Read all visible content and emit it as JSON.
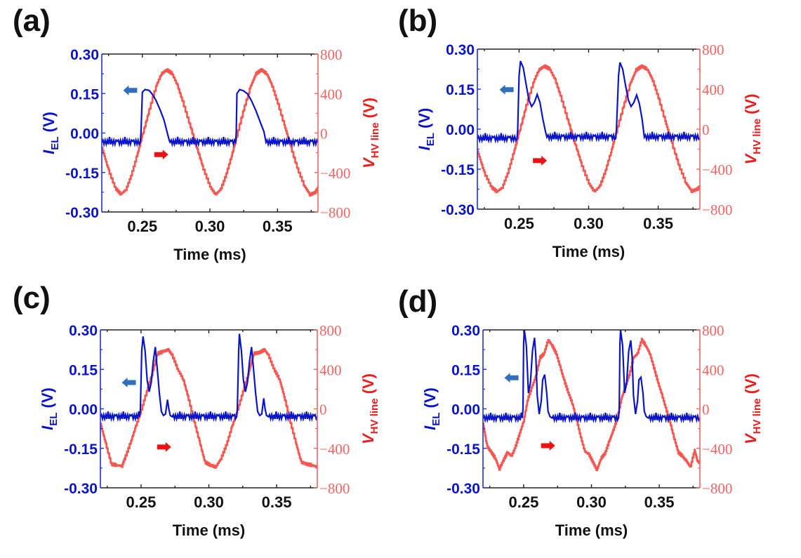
{
  "figure": {
    "panel_labels": [
      "(a)",
      "(b)",
      "(c)",
      "(d)"
    ]
  },
  "colors": {
    "current_trace": "#0a14c8",
    "voltage_trace": "#f5564f",
    "left_axis": "#1f2fe0",
    "right_axis": "#f06464",
    "left_arrow": "#2f6fbf",
    "right_arrow": "#ee1111",
    "frame": "#222222"
  },
  "chart_data": [
    {
      "panel": "(a)",
      "type": "line",
      "title": "",
      "xlabel": "Time (ms)",
      "ylabel_left": {
        "symbol": "I",
        "subscript": "EL",
        "unit": "(V)"
      },
      "ylabel_right": {
        "symbol": "V",
        "subscript": "HV line",
        "unit": "(V)"
      },
      "xlim": [
        0.22,
        0.38
      ],
      "ylim_left": [
        -0.3,
        0.3
      ],
      "ylim_right": [
        -800,
        800
      ],
      "x_ticks": [
        "0.25",
        "0.30",
        "0.35"
      ],
      "x_tick_values": [
        0.25,
        0.3,
        0.35
      ],
      "left_ticks": [
        "0.30",
        "0.15",
        "0.00",
        "-0.15",
        "-0.30"
      ],
      "left_tick_values": [
        0.3,
        0.15,
        0.0,
        -0.15,
        -0.3
      ],
      "right_ticks": [
        "800",
        "400",
        "0",
        "−400",
        "−800"
      ],
      "right_tick_values": [
        800,
        400,
        0,
        -400,
        -800
      ],
      "grid": false,
      "annotations": [
        {
          "type": "arrow",
          "direction": "left",
          "meaning": "I_EL uses left axis",
          "x": 0.241,
          "y_left": 0.162
        },
        {
          "type": "arrow",
          "direction": "right",
          "meaning": "V_HV line uses right axis",
          "x": 0.264,
          "y_left": -0.082
        }
      ],
      "series": [
        {
          "name": "I_EL",
          "axis": "left",
          "x": [
            0.22,
            0.2485,
            0.249,
            0.25,
            0.252,
            0.255,
            0.257,
            0.26,
            0.263,
            0.266,
            0.268,
            0.27,
            0.2705,
            0.319,
            0.3195,
            0.32,
            0.322,
            0.325,
            0.328,
            0.331,
            0.334,
            0.337,
            0.34,
            0.3415,
            0.38
          ],
          "values": [
            -0.035,
            -0.035,
            0.0,
            0.155,
            0.165,
            0.162,
            0.15,
            0.125,
            0.09,
            0.05,
            0.01,
            -0.03,
            -0.035,
            -0.035,
            0.0,
            0.15,
            0.165,
            0.16,
            0.148,
            0.12,
            0.085,
            0.045,
            0.005,
            -0.035,
            -0.035
          ]
        },
        {
          "name": "V_HV line",
          "axis": "right",
          "x": [
            0.22,
            0.225,
            0.23,
            0.234,
            0.238,
            0.242,
            0.246,
            0.25,
            0.255,
            0.26,
            0.264,
            0.268,
            0.272,
            0.276,
            0.28,
            0.285,
            0.29,
            0.295,
            0.3,
            0.304,
            0.308,
            0.312,
            0.316,
            0.32,
            0.325,
            0.33,
            0.334,
            0.338,
            0.342,
            0.346,
            0.35,
            0.355,
            0.36,
            0.365,
            0.37,
            0.374,
            0.378,
            0.38
          ],
          "values": [
            -150,
            -380,
            -560,
            -620,
            -570,
            -420,
            -230,
            -20,
            230,
            470,
            600,
            640,
            600,
            480,
            310,
            90,
            -140,
            -360,
            -540,
            -625,
            -570,
            -420,
            -230,
            -20,
            240,
            470,
            600,
            640,
            600,
            480,
            310,
            80,
            -150,
            -370,
            -540,
            -625,
            -600,
            -560
          ]
        }
      ]
    },
    {
      "panel": "(b)",
      "type": "line",
      "title": "",
      "xlabel": "Time (ms)",
      "ylabel_left": {
        "symbol": "I",
        "subscript": "EL",
        "unit": "(V)"
      },
      "ylabel_right": {
        "symbol": "V",
        "subscript": "HV line",
        "unit": "(V)"
      },
      "xlim": [
        0.22,
        0.38
      ],
      "ylim_left": [
        -0.3,
        0.3
      ],
      "ylim_right": [
        -800,
        800
      ],
      "x_ticks": [
        "0.25",
        "0.30",
        "0.35"
      ],
      "x_tick_values": [
        0.25,
        0.3,
        0.35
      ],
      "left_ticks": [
        "0.30",
        "0.15",
        "0.00",
        "-0.15",
        "-0.30"
      ],
      "left_tick_values": [
        0.3,
        0.15,
        0.0,
        -0.15,
        -0.3
      ],
      "right_ticks": [
        "800",
        "400",
        "0",
        "−400",
        "−800"
      ],
      "right_tick_values": [
        800,
        400,
        0,
        -400,
        -800
      ],
      "grid": false,
      "annotations": [
        {
          "type": "arrow",
          "direction": "left",
          "meaning": "I_EL uses left axis",
          "x": 0.241,
          "y_left": 0.148
        },
        {
          "type": "arrow",
          "direction": "right",
          "meaning": "V_HV line uses right axis",
          "x": 0.265,
          "y_left": -0.118
        }
      ],
      "series": [
        {
          "name": "I_EL",
          "axis": "left",
          "x": [
            0.22,
            0.2485,
            0.249,
            0.25,
            0.251,
            0.253,
            0.255,
            0.257,
            0.259,
            0.261,
            0.263,
            0.265,
            0.267,
            0.269,
            0.27,
            0.38
          ],
          "values": [
            -0.035,
            -0.035,
            0.0,
            0.2,
            0.255,
            0.23,
            0.17,
            0.11,
            0.085,
            0.1,
            0.13,
            0.1,
            0.04,
            -0.01,
            -0.03,
            -0.035
          ],
          "x2": [
            0.3195,
            0.32,
            0.3215,
            0.3225,
            0.3245,
            0.3265,
            0.3285,
            0.3305,
            0.3325,
            0.3345,
            0.3365,
            0.3385,
            0.34
          ],
          "values2": [
            -0.035,
            0.0,
            0.2,
            0.25,
            0.225,
            0.165,
            0.11,
            0.085,
            0.1,
            0.128,
            0.095,
            0.035,
            -0.03
          ]
        },
        {
          "name": "V_HV line",
          "axis": "right",
          "x": [
            0.22,
            0.225,
            0.23,
            0.234,
            0.238,
            0.242,
            0.246,
            0.25,
            0.255,
            0.26,
            0.264,
            0.268,
            0.272,
            0.276,
            0.28,
            0.285,
            0.29,
            0.295,
            0.3,
            0.304,
            0.308,
            0.312,
            0.316,
            0.32,
            0.325,
            0.33,
            0.334,
            0.338,
            0.342,
            0.346,
            0.35,
            0.355,
            0.36,
            0.365,
            0.37,
            0.374,
            0.378,
            0.38
          ],
          "values": [
            -220,
            -440,
            -580,
            -625,
            -580,
            -430,
            -240,
            -30,
            230,
            460,
            590,
            630,
            600,
            490,
            320,
            90,
            -140,
            -360,
            -540,
            -625,
            -570,
            -420,
            -230,
            -20,
            230,
            460,
            590,
            630,
            600,
            490,
            320,
            80,
            -150,
            -370,
            -540,
            -620,
            -600,
            -580
          ]
        }
      ]
    },
    {
      "panel": "(c)",
      "type": "line",
      "title": "",
      "xlabel": "Time (ms)",
      "ylabel_left": {
        "symbol": "I",
        "subscript": "EL",
        "unit": "(V)"
      },
      "ylabel_right": {
        "symbol": "V",
        "subscript": "HV line",
        "unit": "(V)"
      },
      "xlim": [
        0.22,
        0.38
      ],
      "ylim_left": [
        -0.3,
        0.3
      ],
      "ylim_right": [
        -800,
        800
      ],
      "x_ticks": [
        "0.25",
        "0.30",
        "0.35"
      ],
      "x_tick_values": [
        0.25,
        0.3,
        0.35
      ],
      "left_ticks": [
        "0.30",
        "0.15",
        "0.00",
        "-0.15",
        "-0.30"
      ],
      "left_tick_values": [
        0.3,
        0.15,
        0.0,
        -0.15,
        -0.3
      ],
      "right_ticks": [
        "800",
        "400",
        "0",
        "−400",
        "−800"
      ],
      "right_tick_values": [
        800,
        400,
        0,
        -400,
        -800
      ],
      "grid": false,
      "annotations": [
        {
          "type": "arrow",
          "direction": "left",
          "meaning": "I_EL uses left axis",
          "x": 0.241,
          "y_left": 0.1
        },
        {
          "type": "arrow",
          "direction": "right",
          "meaning": "V_HV line uses right axis",
          "x": 0.267,
          "y_left": -0.145
        }
      ],
      "series": [
        {
          "name": "I_EL",
          "axis": "left",
          "x": [
            0.22,
            0.249,
            0.2495,
            0.2505,
            0.2515,
            0.253,
            0.2545,
            0.256,
            0.2575,
            0.259,
            0.2605,
            0.262,
            0.2635,
            0.265,
            0.2665,
            0.268,
            0.2695,
            0.2705,
            0.2715,
            0.273,
            0.38
          ],
          "values": [
            -0.03,
            -0.03,
            0.0,
            0.22,
            0.275,
            0.22,
            0.11,
            0.065,
            0.1,
            0.18,
            0.235,
            0.15,
            0.06,
            -0.01,
            -0.025,
            -0.02,
            0.035,
            0.0,
            -0.025,
            -0.03,
            -0.03
          ],
          "x2": [
            0.3205,
            0.321,
            0.322,
            0.3225,
            0.324,
            0.3255,
            0.327,
            0.3285,
            0.33,
            0.3315,
            0.333,
            0.3345,
            0.336,
            0.3375,
            0.339,
            0.3405,
            0.3415,
            0.3425,
            0.344
          ],
          "values2": [
            -0.03,
            0.0,
            0.22,
            0.285,
            0.22,
            0.11,
            0.065,
            0.1,
            0.18,
            0.235,
            0.15,
            0.06,
            -0.01,
            -0.025,
            -0.02,
            0.04,
            0.0,
            -0.025,
            -0.03
          ]
        },
        {
          "name": "V_HV line",
          "axis": "right",
          "x": [
            0.22,
            0.224,
            0.228,
            0.232,
            0.236,
            0.238,
            0.242,
            0.246,
            0.25,
            0.254,
            0.258,
            0.262,
            0.266,
            0.27,
            0.273,
            0.277,
            0.281,
            0.285,
            0.289,
            0.293,
            0.297,
            0.301,
            0.305,
            0.309,
            0.313,
            0.317,
            0.321,
            0.325,
            0.329,
            0.333,
            0.337,
            0.341,
            0.344,
            0.348,
            0.352,
            0.356,
            0.36,
            0.364,
            0.368,
            0.372,
            0.376,
            0.38
          ],
          "values": [
            -150,
            -360,
            -560,
            -570,
            -580,
            -500,
            -350,
            -180,
            -20,
            170,
            350,
            560,
            580,
            600,
            540,
            400,
            300,
            100,
            -120,
            -330,
            -540,
            -570,
            -590,
            -500,
            -360,
            -180,
            -20,
            170,
            350,
            560,
            570,
            600,
            540,
            400,
            300,
            100,
            -130,
            -340,
            -540,
            -560,
            -570,
            -590
          ]
        }
      ]
    },
    {
      "panel": "(d)",
      "type": "line",
      "title": "",
      "xlabel": "Time (ms)",
      "ylabel_left": {
        "symbol": "I",
        "subscript": "EL",
        "unit": "(V)"
      },
      "ylabel_right": {
        "symbol": "V",
        "subscript": "HV line",
        "unit": "(V)"
      },
      "xlim": [
        0.22,
        0.38
      ],
      "ylim_left": [
        -0.3,
        0.3
      ],
      "ylim_right": [
        -800,
        800
      ],
      "x_ticks": [
        "0.25",
        "0.30",
        "0.35"
      ],
      "x_tick_values": [
        0.25,
        0.3,
        0.35
      ],
      "left_ticks": [
        "0.30",
        "0.15",
        "0.00",
        "-0.15",
        "-0.30"
      ],
      "left_tick_values": [
        0.3,
        0.15,
        0.0,
        -0.15,
        -0.3
      ],
      "right_ticks": [
        "800",
        "400",
        "0",
        "−400",
        "−800"
      ],
      "right_tick_values": [
        800,
        400,
        0,
        -400,
        -800
      ],
      "grid": false,
      "annotations": [
        {
          "type": "arrow",
          "direction": "left",
          "meaning": "I_EL uses left axis",
          "x": 0.241,
          "y_left": 0.118
        },
        {
          "type": "arrow",
          "direction": "right",
          "meaning": "V_HV line uses right axis",
          "x": 0.268,
          "y_left": -0.14
        }
      ],
      "series": [
        {
          "name": "I_EL",
          "axis": "left",
          "x": [
            0.22,
            0.249,
            0.2495,
            0.25,
            0.2505,
            0.252,
            0.2535,
            0.255,
            0.2565,
            0.258,
            0.259,
            0.26,
            0.2615,
            0.263,
            0.264,
            0.2655,
            0.267,
            0.268,
            0.2695,
            0.271,
            0.38
          ],
          "values": [
            -0.035,
            -0.035,
            0.0,
            0.25,
            0.3,
            0.24,
            0.06,
            0.1,
            0.22,
            0.27,
            0.2,
            0.05,
            -0.02,
            0.03,
            0.11,
            0.13,
            0.06,
            -0.01,
            -0.03,
            -0.035,
            -0.035
          ],
          "x2": [
            0.32,
            0.3205,
            0.321,
            0.3215,
            0.323,
            0.3245,
            0.326,
            0.3275,
            0.329,
            0.33,
            0.331,
            0.3325,
            0.334,
            0.335,
            0.3365,
            0.338,
            0.339,
            0.3405,
            0.342
          ],
          "values2": [
            -0.035,
            0.0,
            0.25,
            0.3,
            0.24,
            0.06,
            0.1,
            0.22,
            0.26,
            0.2,
            0.05,
            -0.02,
            0.03,
            0.11,
            0.12,
            0.06,
            -0.01,
            -0.03,
            -0.035
          ]
        },
        {
          "name": "V_HV line",
          "axis": "right",
          "x": [
            0.22,
            0.223,
            0.226,
            0.229,
            0.232,
            0.235,
            0.238,
            0.241,
            0.244,
            0.247,
            0.25,
            0.253,
            0.256,
            0.259,
            0.262,
            0.265,
            0.268,
            0.271,
            0.274,
            0.277,
            0.28,
            0.283,
            0.286,
            0.289,
            0.292,
            0.295,
            0.298,
            0.301,
            0.304,
            0.307,
            0.31,
            0.313,
            0.316,
            0.319,
            0.322,
            0.325,
            0.328,
            0.331,
            0.334,
            0.337,
            0.34,
            0.343,
            0.346,
            0.349,
            0.352,
            0.355,
            0.358,
            0.361,
            0.364,
            0.367,
            0.37,
            0.373,
            0.376,
            0.378,
            0.38
          ],
          "values": [
            -150,
            -380,
            -440,
            -500,
            -610,
            -520,
            -440,
            -480,
            -380,
            -250,
            -120,
            100,
            220,
            330,
            520,
            560,
            700,
            640,
            560,
            420,
            280,
            160,
            50,
            -110,
            -280,
            -430,
            -460,
            -540,
            -620,
            -500,
            -450,
            -330,
            -220,
            -100,
            100,
            230,
            350,
            520,
            560,
            700,
            640,
            560,
            420,
            270,
            140,
            0,
            -140,
            -300,
            -440,
            -480,
            -530,
            -590,
            -420,
            -520,
            -560
          ]
        }
      ]
    }
  ]
}
